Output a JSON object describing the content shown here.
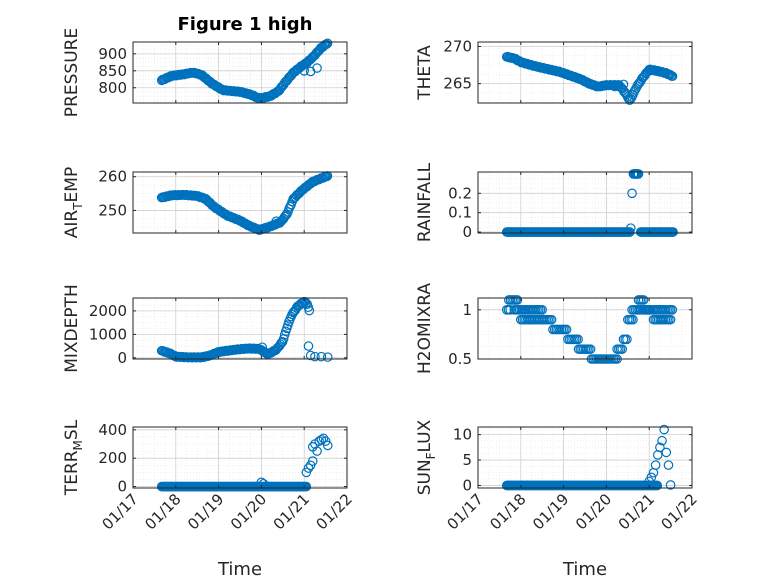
{
  "figure": {
    "title": "Figure 1 high",
    "marker_color": "#0072BD",
    "axis_color": "#262626",
    "grid_color": "#d9d9d9"
  },
  "chart_data": [
    {
      "type": "scatter",
      "id": "pressure",
      "ylabel": "PRESSURE",
      "xlabel": "",
      "ylim": [
        755,
        935
      ],
      "yticks": [
        "800",
        "850",
        "900"
      ],
      "ytick_values": [
        800,
        850,
        900
      ],
      "xlim": [
        "01/17",
        "01/22"
      ],
      "xtick_labels": [],
      "grid": true,
      "anchors": [
        [
          17.67,
          822
        ],
        [
          17.9,
          835
        ],
        [
          18.2,
          840
        ],
        [
          18.4,
          845
        ],
        [
          18.6,
          838
        ],
        [
          18.85,
          812
        ],
        [
          19.1,
          793
        ],
        [
          19.5,
          788
        ],
        [
          19.75,
          780
        ],
        [
          19.95,
          768
        ],
        [
          20.2,
          775
        ],
        [
          20.4,
          790
        ],
        [
          20.55,
          815
        ],
        [
          20.75,
          845
        ],
        [
          20.95,
          865
        ],
        [
          21.05,
          873
        ],
        [
          21.2,
          890
        ],
        [
          21.4,
          918
        ],
        [
          21.55,
          932
        ]
      ],
      "outliers": [
        [
          21.0,
          850
        ],
        [
          21.15,
          848
        ],
        [
          21.3,
          858
        ]
      ]
    },
    {
      "type": "scatter",
      "id": "theta",
      "ylabel": "THETA",
      "xlabel": "",
      "ylim": [
        262.4,
        270.6
      ],
      "yticks": [
        "265",
        "270"
      ],
      "ytick_values": [
        265,
        270
      ],
      "xlim": [
        "01/17",
        "01/22"
      ],
      "xtick_labels": [],
      "grid": true,
      "anchors": [
        [
          17.67,
          268.6
        ],
        [
          17.85,
          268.4
        ],
        [
          18.0,
          267.9
        ],
        [
          18.3,
          267.4
        ],
        [
          18.6,
          267.0
        ],
        [
          18.9,
          266.6
        ],
        [
          19.2,
          266.0
        ],
        [
          19.4,
          265.6
        ],
        [
          19.6,
          265.0
        ],
        [
          19.8,
          264.6
        ],
        [
          20.0,
          264.8
        ],
        [
          20.3,
          264.8
        ],
        [
          20.45,
          263.7
        ],
        [
          20.55,
          262.7
        ],
        [
          20.7,
          264.5
        ],
        [
          20.85,
          265.8
        ],
        [
          21.0,
          266.9
        ],
        [
          21.2,
          266.7
        ],
        [
          21.4,
          266.4
        ],
        [
          21.55,
          266.0
        ]
      ],
      "outliers": [
        [
          20.2,
          264.6
        ],
        [
          20.4,
          264.9
        ]
      ]
    },
    {
      "type": "scatter",
      "id": "air_temp",
      "ylabel": "AIR_TEMP",
      "ylabel_display": {
        "base": "AIR",
        "sub": "T",
        "rest": "EMP"
      },
      "xlabel": "",
      "ylim": [
        243.3,
        261.4
      ],
      "yticks": [
        "250",
        "260"
      ],
      "ytick_values": [
        250,
        260
      ],
      "xlim": [
        "01/17",
        "01/22"
      ],
      "xtick_labels": [],
      "grid": true,
      "anchors": [
        [
          17.67,
          253.8
        ],
        [
          17.9,
          254.5
        ],
        [
          18.2,
          254.6
        ],
        [
          18.5,
          254.3
        ],
        [
          18.7,
          253.4
        ],
        [
          18.9,
          251.0
        ],
        [
          19.2,
          248.5
        ],
        [
          19.5,
          247.0
        ],
        [
          19.7,
          245.5
        ],
        [
          19.95,
          244.2
        ],
        [
          20.2,
          245.2
        ],
        [
          20.45,
          246.5
        ],
        [
          20.6,
          249.0
        ],
        [
          20.75,
          253.5
        ],
        [
          20.95,
          256.0
        ],
        [
          21.2,
          258.5
        ],
        [
          21.55,
          260.3
        ]
      ],
      "outliers": [
        [
          20.35,
          246.8
        ]
      ]
    },
    {
      "type": "scatter",
      "id": "rainfall",
      "ylabel": "RAINFALL",
      "xlabel": "",
      "ylim": [
        -0.005,
        0.31
      ],
      "yticks": [
        "0",
        "0.1",
        "0.2"
      ],
      "ytick_values": [
        0,
        0.1,
        0.2
      ],
      "xlim": [
        "01/17",
        "01/22"
      ],
      "xtick_labels": [],
      "grid": true,
      "segments": [
        {
          "x0": 17.67,
          "x1": 20.55,
          "y": 0
        },
        {
          "x0": 20.63,
          "x1": 20.75,
          "y": 0.3
        },
        {
          "x0": 20.8,
          "x1": 21.57,
          "y": 0
        }
      ],
      "points": [
        [
          20.6,
          0.2
        ],
        [
          20.57,
          0.02
        ]
      ]
    },
    {
      "type": "scatter",
      "id": "mixdepth",
      "ylabel": "MIXDEPTH",
      "xlabel": "",
      "ylim": [
        -50,
        2550
      ],
      "yticks": [
        "0",
        "1000",
        "2000"
      ],
      "ytick_values": [
        0,
        1000,
        2000
      ],
      "xlim": [
        "01/17",
        "01/22"
      ],
      "xtick_labels": [],
      "grid": true,
      "anchors": [
        [
          17.67,
          300
        ],
        [
          17.85,
          200
        ],
        [
          18.0,
          50
        ],
        [
          18.3,
          20
        ],
        [
          18.6,
          20
        ],
        [
          18.8,
          100
        ],
        [
          19.0,
          250
        ],
        [
          19.4,
          350
        ],
        [
          19.7,
          400
        ],
        [
          19.95,
          380
        ],
        [
          20.15,
          150
        ],
        [
          20.35,
          350
        ],
        [
          20.5,
          700
        ],
        [
          20.6,
          1300
        ],
        [
          20.7,
          1800
        ],
        [
          20.85,
          2200
        ],
        [
          21.0,
          2400
        ],
        [
          21.07,
          2300
        ],
        [
          21.12,
          2000
        ]
      ],
      "extra": [
        [
          21.1,
          500
        ],
        [
          21.15,
          100
        ],
        [
          21.25,
          50
        ],
        [
          21.4,
          50
        ],
        [
          21.55,
          30
        ],
        [
          20.02,
          450
        ]
      ]
    },
    {
      "type": "scatter",
      "id": "h2omixra",
      "ylabel": "H2OMIXRA",
      "xlabel": "",
      "ylim": [
        0.5,
        1.12
      ],
      "yticks": [
        "0.5",
        "1"
      ],
      "ytick_values": [
        0.5,
        1
      ],
      "xlim": [
        "01/17",
        "01/22"
      ],
      "xtick_labels": [],
      "grid": true,
      "bands": [
        [
          17.67,
          17.78,
          1.0
        ],
        [
          17.72,
          17.95,
          1.1
        ],
        [
          17.85,
          18.1,
          1.0
        ],
        [
          18.0,
          18.2,
          0.9
        ],
        [
          18.1,
          18.5,
          1.0
        ],
        [
          18.2,
          18.75,
          0.9
        ],
        [
          18.75,
          19.1,
          0.8
        ],
        [
          19.1,
          19.35,
          0.7
        ],
        [
          19.35,
          19.65,
          0.6
        ],
        [
          19.65,
          20.25,
          0.5
        ],
        [
          20.25,
          20.4,
          0.6
        ],
        [
          20.4,
          20.5,
          0.7
        ],
        [
          20.5,
          20.65,
          0.9
        ],
        [
          20.6,
          21.0,
          1.0
        ],
        [
          20.75,
          20.9,
          1.1
        ],
        [
          20.9,
          21.55,
          1.0
        ],
        [
          21.1,
          21.5,
          0.9
        ]
      ]
    },
    {
      "type": "scatter",
      "id": "terr_msl",
      "ylabel": "TERR_MSL",
      "ylabel_display": {
        "base": "TERR",
        "sub": "M",
        "rest": "SL"
      },
      "xlabel": "Time",
      "ylim": [
        -10,
        420
      ],
      "yticks": [
        "0",
        "200",
        "400"
      ],
      "ytick_values": [
        0,
        200,
        400
      ],
      "xlim": [
        "01/17",
        "01/22"
      ],
      "xtick_labels": [
        "01/17",
        "01/18",
        "01/19",
        "01/20",
        "01/21",
        "01/22"
      ],
      "grid": true,
      "segments": [
        {
          "x0": 17.67,
          "x1": 21.05,
          "y": 0
        }
      ],
      "points": [
        [
          20.0,
          30
        ],
        [
          20.05,
          20
        ],
        [
          21.05,
          100
        ],
        [
          21.1,
          130
        ],
        [
          21.15,
          150
        ],
        [
          21.2,
          180
        ],
        [
          21.2,
          280
        ],
        [
          21.25,
          300
        ],
        [
          21.3,
          250
        ],
        [
          21.35,
          320
        ],
        [
          21.4,
          330
        ],
        [
          21.45,
          340
        ],
        [
          21.5,
          320
        ],
        [
          21.55,
          290
        ]
      ]
    },
    {
      "type": "scatter",
      "id": "sun_flux",
      "ylabel": "SUN_FLUX",
      "ylabel_display": {
        "base": "SUN",
        "sub": "F",
        "rest": "LUX"
      },
      "xlabel": "Time",
      "ylim": [
        -0.5,
        11.5
      ],
      "yticks": [
        "0",
        "5",
        "10"
      ],
      "ytick_values": [
        0,
        5,
        10
      ],
      "xlim": [
        "01/17",
        "01/22"
      ],
      "xtick_labels": [
        "01/17",
        "01/18",
        "01/19",
        "01/20",
        "01/21",
        "01/22"
      ],
      "grid": true,
      "segments": [
        {
          "x0": 17.67,
          "x1": 21.2,
          "y": 0
        }
      ],
      "points": [
        [
          21.0,
          0.8
        ],
        [
          21.05,
          1.6
        ],
        [
          21.1,
          2.5
        ],
        [
          21.15,
          4.0
        ],
        [
          21.2,
          6.0
        ],
        [
          21.25,
          7.5
        ],
        [
          21.3,
          8.8
        ],
        [
          21.35,
          11.0
        ],
        [
          21.4,
          6.5
        ],
        [
          21.45,
          4.0
        ],
        [
          21.5,
          0.1
        ]
      ]
    }
  ]
}
